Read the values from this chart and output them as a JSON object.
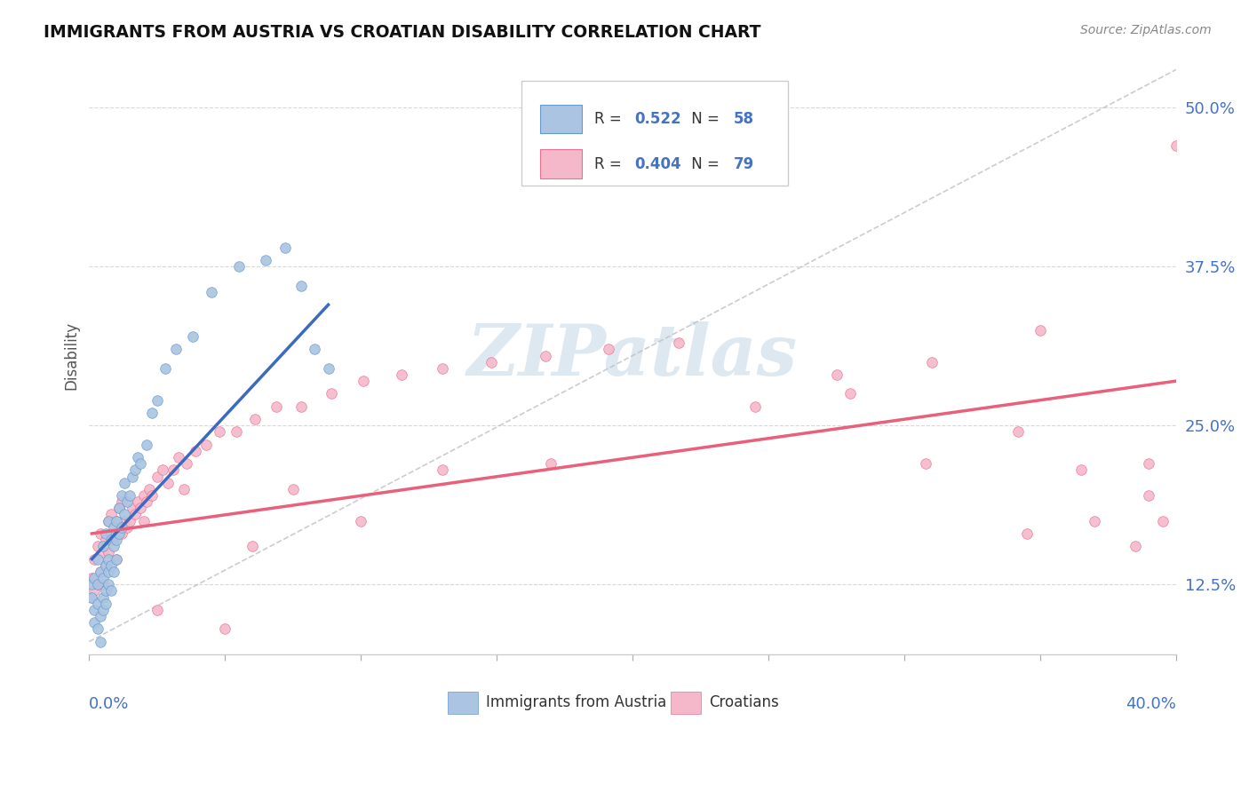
{
  "title": "IMMIGRANTS FROM AUSTRIA VS CROATIAN DISABILITY CORRELATION CHART",
  "source_text": "Source: ZipAtlas.com",
  "ylabel": "Disability",
  "yticks": [
    0.125,
    0.25,
    0.375,
    0.5
  ],
  "ytick_labels": [
    "12.5%",
    "25.0%",
    "37.5%",
    "50.0%"
  ],
  "xlim": [
    0.0,
    0.4
  ],
  "ylim": [
    0.07,
    0.54
  ],
  "color_austria": "#aac4e2",
  "color_croatian": "#f5b8ca",
  "color_austria_line": "#3b6abf",
  "color_croatian_line": "#e8607a",
  "color_austria_edge": "#6699cc",
  "color_croatian_edge": "#e87090",
  "watermark_text": "ZIPatlas",
  "background_color": "#ffffff",
  "grid_color": "#d8d8d8",
  "austria_scatter_x": [
    0.001,
    0.001,
    0.002,
    0.002,
    0.002,
    0.003,
    0.003,
    0.003,
    0.003,
    0.004,
    0.004,
    0.004,
    0.005,
    0.005,
    0.005,
    0.005,
    0.006,
    0.006,
    0.006,
    0.006,
    0.007,
    0.007,
    0.007,
    0.007,
    0.008,
    0.008,
    0.008,
    0.009,
    0.009,
    0.009,
    0.01,
    0.01,
    0.01,
    0.011,
    0.011,
    0.012,
    0.012,
    0.013,
    0.013,
    0.014,
    0.015,
    0.016,
    0.017,
    0.018,
    0.019,
    0.021,
    0.023,
    0.025,
    0.028,
    0.032,
    0.038,
    0.045,
    0.055,
    0.065,
    0.072,
    0.078,
    0.083,
    0.088
  ],
  "austria_scatter_y": [
    0.115,
    0.125,
    0.105,
    0.13,
    0.095,
    0.11,
    0.125,
    0.09,
    0.145,
    0.1,
    0.135,
    0.08,
    0.115,
    0.13,
    0.105,
    0.155,
    0.12,
    0.14,
    0.11,
    0.165,
    0.135,
    0.145,
    0.125,
    0.175,
    0.14,
    0.16,
    0.12,
    0.155,
    0.17,
    0.135,
    0.16,
    0.145,
    0.175,
    0.165,
    0.185,
    0.17,
    0.195,
    0.18,
    0.205,
    0.19,
    0.195,
    0.21,
    0.215,
    0.225,
    0.22,
    0.235,
    0.26,
    0.27,
    0.295,
    0.31,
    0.32,
    0.355,
    0.375,
    0.38,
    0.39,
    0.36,
    0.31,
    0.295
  ],
  "croatian_scatter_x": [
    0.001,
    0.001,
    0.002,
    0.002,
    0.003,
    0.003,
    0.004,
    0.004,
    0.005,
    0.005,
    0.006,
    0.006,
    0.007,
    0.007,
    0.008,
    0.008,
    0.009,
    0.01,
    0.01,
    0.011,
    0.012,
    0.012,
    0.013,
    0.014,
    0.015,
    0.016,
    0.017,
    0.018,
    0.019,
    0.02,
    0.021,
    0.022,
    0.023,
    0.025,
    0.027,
    0.029,
    0.031,
    0.033,
    0.036,
    0.039,
    0.043,
    0.048,
    0.054,
    0.061,
    0.069,
    0.078,
    0.089,
    0.101,
    0.115,
    0.13,
    0.148,
    0.168,
    0.191,
    0.217,
    0.245,
    0.275,
    0.308,
    0.342,
    0.37,
    0.39,
    0.4,
    0.31,
    0.35,
    0.39,
    0.28,
    0.17,
    0.1,
    0.06,
    0.035,
    0.02,
    0.385,
    0.395,
    0.365,
    0.345,
    0.13,
    0.075,
    0.05,
    0.025
  ],
  "croatian_scatter_y": [
    0.13,
    0.115,
    0.145,
    0.12,
    0.155,
    0.125,
    0.135,
    0.165,
    0.125,
    0.15,
    0.16,
    0.14,
    0.175,
    0.15,
    0.165,
    0.18,
    0.16,
    0.145,
    0.175,
    0.185,
    0.165,
    0.19,
    0.175,
    0.17,
    0.175,
    0.185,
    0.18,
    0.19,
    0.185,
    0.195,
    0.19,
    0.2,
    0.195,
    0.21,
    0.215,
    0.205,
    0.215,
    0.225,
    0.22,
    0.23,
    0.235,
    0.245,
    0.245,
    0.255,
    0.265,
    0.265,
    0.275,
    0.285,
    0.29,
    0.295,
    0.3,
    0.305,
    0.31,
    0.315,
    0.265,
    0.29,
    0.22,
    0.245,
    0.175,
    0.195,
    0.47,
    0.3,
    0.325,
    0.22,
    0.275,
    0.22,
    0.175,
    0.155,
    0.2,
    0.175,
    0.155,
    0.175,
    0.215,
    0.165,
    0.215,
    0.2,
    0.09,
    0.105
  ],
  "austria_trendline_x": [
    0.001,
    0.088
  ],
  "austria_trendline_y": [
    0.145,
    0.345
  ],
  "croatian_trendline_x": [
    0.001,
    0.4
  ],
  "croatian_trendline_y": [
    0.165,
    0.285
  ],
  "refline_x": [
    0.0,
    0.4
  ],
  "refline_y": [
    0.08,
    0.53
  ]
}
